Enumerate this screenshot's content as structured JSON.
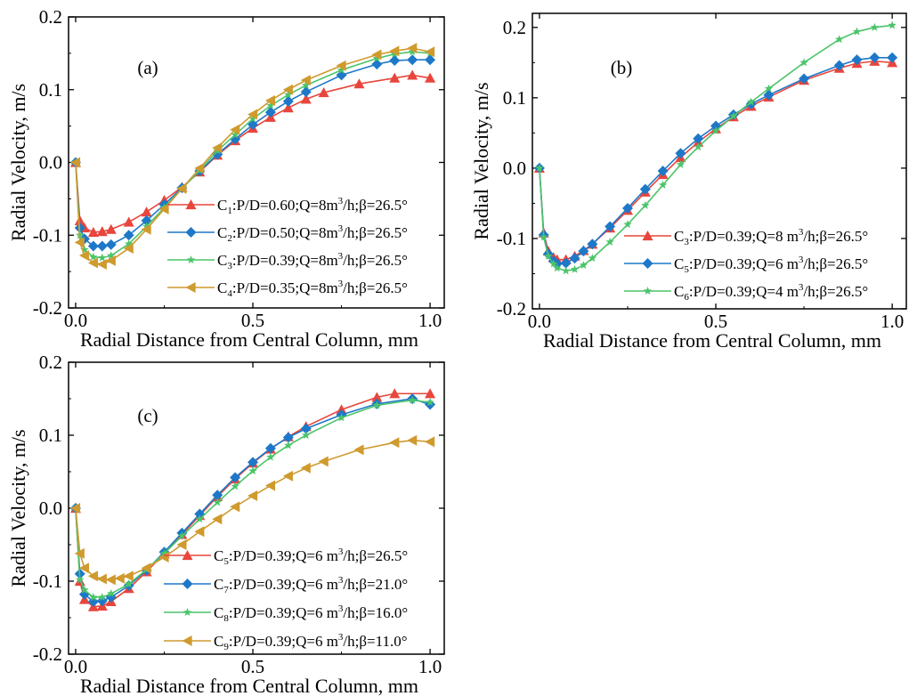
{
  "chart_data": [
    {
      "id": "a",
      "type": "line",
      "panel_label": "(a)",
      "xlabel": "Radial Distance from Central Column, mm",
      "ylabel": "Radial Velocity, m/s",
      "xlim": [
        -0.02,
        1.04
      ],
      "ylim": [
        -0.2,
        0.2
      ],
      "xticks": [
        0.0,
        0.5,
        1.0
      ],
      "xtick_labels": [
        "0.0",
        "0.5",
        "1.0"
      ],
      "yticks": [
        -0.2,
        -0.1,
        0.0,
        0.1,
        0.2
      ],
      "ytick_labels": [
        "-0.2",
        "-0.1",
        "0.0",
        "0.1",
        "0.2"
      ],
      "legend_position": "bottom-right",
      "series": [
        {
          "label": {
            "pre": "C",
            "sub": "1",
            "main": ":P/D=0.60;Q=8m",
            "sup": "3",
            "post": "/h;β=26.5°"
          },
          "color": "#e8453c",
          "marker": "triangle-up",
          "x": [
            0,
            0.012,
            0.025,
            0.05,
            0.075,
            0.1,
            0.15,
            0.2,
            0.25,
            0.3,
            0.35,
            0.4,
            0.45,
            0.5,
            0.55,
            0.6,
            0.65,
            0.7,
            0.8,
            0.9,
            0.95,
            1.0
          ],
          "y": [
            0,
            -0.08,
            -0.09,
            -0.096,
            -0.095,
            -0.092,
            -0.082,
            -0.068,
            -0.052,
            -0.034,
            -0.013,
            0.01,
            0.03,
            0.047,
            0.062,
            0.075,
            0.087,
            0.096,
            0.108,
            0.116,
            0.12,
            0.116
          ]
        },
        {
          "label": {
            "pre": "C",
            "sub": "2",
            "main": ":P/D=0.50;Q=8m",
            "sup": "3",
            "post": "/h;β=26.5°"
          },
          "color": "#1e78c8",
          "marker": "diamond",
          "x": [
            0,
            0.012,
            0.025,
            0.05,
            0.075,
            0.1,
            0.15,
            0.2,
            0.25,
            0.3,
            0.35,
            0.4,
            0.45,
            0.5,
            0.55,
            0.6,
            0.65,
            0.75,
            0.85,
            0.9,
            0.95,
            1.0
          ],
          "y": [
            0,
            -0.09,
            -0.105,
            -0.115,
            -0.115,
            -0.113,
            -0.1,
            -0.08,
            -0.058,
            -0.035,
            -0.012,
            0.011,
            0.032,
            0.052,
            0.069,
            0.084,
            0.097,
            0.12,
            0.135,
            0.14,
            0.141,
            0.141
          ]
        },
        {
          "label": {
            "pre": "C",
            "sub": "3",
            "main": ":P/D=0.39;Q=8m",
            "sup": "3",
            "post": "/h;β=26.5°"
          },
          "color": "#4cc46a",
          "marker": "star",
          "x": [
            0,
            0.012,
            0.025,
            0.05,
            0.075,
            0.1,
            0.15,
            0.2,
            0.25,
            0.3,
            0.35,
            0.4,
            0.45,
            0.5,
            0.55,
            0.6,
            0.65,
            0.75,
            0.85,
            0.9,
            0.95,
            1.0
          ],
          "y": [
            0,
            -0.1,
            -0.12,
            -0.13,
            -0.131,
            -0.128,
            -0.112,
            -0.088,
            -0.062,
            -0.036,
            -0.011,
            0.016,
            0.038,
            0.06,
            0.078,
            0.093,
            0.106,
            0.127,
            0.143,
            0.149,
            0.152,
            0.15
          ]
        },
        {
          "label": {
            "pre": "C",
            "sub": "4",
            "main": ":P/D=0.35;Q=8m",
            "sup": "3",
            "post": "/h;β=26.5°"
          },
          "color": "#cf9a2e",
          "marker": "triangle-left",
          "x": [
            0,
            0.012,
            0.025,
            0.05,
            0.075,
            0.1,
            0.15,
            0.2,
            0.25,
            0.3,
            0.35,
            0.4,
            0.45,
            0.5,
            0.55,
            0.6,
            0.65,
            0.75,
            0.85,
            0.9,
            0.95,
            1.0
          ],
          "y": [
            0,
            -0.11,
            -0.128,
            -0.138,
            -0.14,
            -0.135,
            -0.118,
            -0.092,
            -0.064,
            -0.036,
            -0.008,
            0.02,
            0.045,
            0.066,
            0.085,
            0.1,
            0.113,
            0.133,
            0.148,
            0.153,
            0.157,
            0.152
          ]
        }
      ]
    },
    {
      "id": "b",
      "type": "line",
      "panel_label": "(b)",
      "xlabel": "Radial Distance from Central Column, mm",
      "ylabel": "Radial Velocity, m/s",
      "xlim": [
        -0.02,
        1.04
      ],
      "ylim": [
        -0.2,
        0.22
      ],
      "xticks": [
        0.0,
        0.5,
        1.0
      ],
      "xtick_labels": [
        "0.0",
        "0.5",
        "1.0"
      ],
      "yticks": [
        -0.2,
        -0.1,
        0.0,
        0.1,
        0.2
      ],
      "ytick_labels": [
        "-0.2",
        "-0.1",
        "0.0",
        "0.1",
        "0.2"
      ],
      "legend_position": "bottom-right",
      "series": [
        {
          "label": {
            "pre": "C",
            "sub": "3",
            "main": ":P/D=0.39;Q=8 m",
            "sup": "3",
            "post": "/h;β=26.5°"
          },
          "color": "#e8453c",
          "marker": "triangle-up",
          "x": [
            0,
            0.012,
            0.025,
            0.04,
            0.05,
            0.075,
            0.1,
            0.125,
            0.15,
            0.2,
            0.25,
            0.3,
            0.35,
            0.4,
            0.45,
            0.5,
            0.55,
            0.6,
            0.65,
            0.75,
            0.85,
            0.9,
            0.95,
            1.0
          ],
          "y": [
            0,
            -0.092,
            -0.118,
            -0.127,
            -0.13,
            -0.13,
            -0.125,
            -0.117,
            -0.108,
            -0.085,
            -0.06,
            -0.034,
            -0.009,
            0.015,
            0.037,
            0.056,
            0.073,
            0.088,
            0.101,
            0.125,
            0.142,
            0.149,
            0.152,
            0.15
          ]
        },
        {
          "label": {
            "pre": "C",
            "sub": "5",
            "main": ":P/D=0.39;Q=6 m",
            "sup": "3",
            "post": "/h;β=26.5°"
          },
          "color": "#1e78c8",
          "marker": "diamond",
          "x": [
            0,
            0.012,
            0.025,
            0.04,
            0.05,
            0.075,
            0.1,
            0.125,
            0.15,
            0.2,
            0.25,
            0.3,
            0.35,
            0.4,
            0.45,
            0.5,
            0.55,
            0.6,
            0.65,
            0.75,
            0.85,
            0.9,
            0.95,
            1.0
          ],
          "y": [
            0,
            -0.095,
            -0.122,
            -0.132,
            -0.136,
            -0.135,
            -0.128,
            -0.118,
            -0.108,
            -0.083,
            -0.057,
            -0.03,
            -0.004,
            0.021,
            0.042,
            0.06,
            0.076,
            0.091,
            0.104,
            0.127,
            0.146,
            0.154,
            0.157,
            0.157
          ]
        },
        {
          "label": {
            "pre": "C",
            "sub": "6",
            "main": ":P/D=0.39;Q=4 m",
            "sup": "3",
            "post": "/h;β=26.5°"
          },
          "color": "#4cc46a",
          "marker": "star",
          "x": [
            0,
            0.012,
            0.025,
            0.04,
            0.05,
            0.075,
            0.1,
            0.125,
            0.15,
            0.2,
            0.25,
            0.3,
            0.35,
            0.4,
            0.45,
            0.5,
            0.55,
            0.6,
            0.65,
            0.75,
            0.85,
            0.9,
            0.95,
            1.0
          ],
          "y": [
            0,
            -0.098,
            -0.125,
            -0.136,
            -0.142,
            -0.146,
            -0.144,
            -0.138,
            -0.128,
            -0.105,
            -0.08,
            -0.053,
            -0.024,
            0.005,
            0.03,
            0.053,
            0.074,
            0.094,
            0.113,
            0.15,
            0.183,
            0.194,
            0.2,
            0.203
          ]
        }
      ]
    },
    {
      "id": "c",
      "type": "line",
      "panel_label": "(c)",
      "xlabel": "Radial Distance from Central Column, mm",
      "ylabel": "Radial Velocity, m/s",
      "xlim": [
        -0.02,
        1.04
      ],
      "ylim": [
        -0.2,
        0.2
      ],
      "xticks": [
        0.0,
        0.5,
        1.0
      ],
      "xtick_labels": [
        "0.0",
        "0.5",
        "1.0"
      ],
      "yticks": [
        -0.2,
        -0.1,
        0.0,
        0.1,
        0.2
      ],
      "ytick_labels": [
        "-0.2",
        "-0.1",
        "0.0",
        "0.1",
        "0.2"
      ],
      "legend_position": "bottom-right",
      "series": [
        {
          "label": {
            "pre": "C",
            "sub": "5",
            "main": ":P/D=0.39;Q=6 m",
            "sup": "3",
            "post": "/h;β=26.5°"
          },
          "color": "#e8453c",
          "marker": "triangle-up",
          "x": [
            0,
            0.012,
            0.025,
            0.05,
            0.075,
            0.1,
            0.15,
            0.2,
            0.25,
            0.3,
            0.35,
            0.4,
            0.45,
            0.5,
            0.55,
            0.6,
            0.65,
            0.75,
            0.85,
            0.9,
            1.0
          ],
          "y": [
            0,
            -0.1,
            -0.125,
            -0.135,
            -0.134,
            -0.128,
            -0.11,
            -0.087,
            -0.062,
            -0.036,
            -0.01,
            0.016,
            0.04,
            0.062,
            0.081,
            0.098,
            0.112,
            0.135,
            0.152,
            0.157,
            0.157
          ]
        },
        {
          "label": {
            "pre": "C",
            "sub": "7",
            "main": ":P/D=0.39;Q=6 m",
            "sup": "3",
            "post": "/h;β=21.0°"
          },
          "color": "#1e78c8",
          "marker": "diamond",
          "x": [
            0,
            0.012,
            0.025,
            0.05,
            0.075,
            0.1,
            0.15,
            0.2,
            0.25,
            0.3,
            0.35,
            0.4,
            0.45,
            0.5,
            0.55,
            0.6,
            0.65,
            0.75,
            0.85,
            0.95,
            1.0
          ],
          "y": [
            0,
            -0.09,
            -0.118,
            -0.128,
            -0.127,
            -0.122,
            -0.106,
            -0.085,
            -0.06,
            -0.034,
            -0.008,
            0.018,
            0.042,
            0.063,
            0.082,
            0.097,
            0.109,
            0.128,
            0.143,
            0.15,
            0.142
          ]
        },
        {
          "label": {
            "pre": "C",
            "sub": "8",
            "main": ":P/D=0.39;Q=6 m",
            "sup": "3",
            "post": "/h;β=16.0°"
          },
          "color": "#4cc46a",
          "marker": "star",
          "x": [
            0,
            0.012,
            0.025,
            0.05,
            0.075,
            0.1,
            0.15,
            0.2,
            0.25,
            0.3,
            0.35,
            0.4,
            0.45,
            0.5,
            0.55,
            0.6,
            0.65,
            0.75,
            0.85,
            0.95,
            1.0
          ],
          "y": [
            0,
            -0.098,
            -0.112,
            -0.122,
            -0.122,
            -0.117,
            -0.104,
            -0.084,
            -0.062,
            -0.038,
            -0.015,
            0.008,
            0.03,
            0.051,
            0.07,
            0.086,
            0.1,
            0.124,
            0.141,
            0.148,
            0.145
          ]
        },
        {
          "label": {
            "pre": "C",
            "sub": "9",
            "main": ":P/D=0.39;Q=6 m",
            "sup": "3",
            "post": "/h;β=11.0°"
          },
          "color": "#cf9a2e",
          "marker": "triangle-left",
          "x": [
            0,
            0.012,
            0.025,
            0.05,
            0.075,
            0.1,
            0.125,
            0.15,
            0.2,
            0.25,
            0.3,
            0.35,
            0.4,
            0.45,
            0.5,
            0.55,
            0.6,
            0.65,
            0.7,
            0.8,
            0.9,
            0.95,
            1.0
          ],
          "y": [
            0,
            -0.062,
            -0.082,
            -0.093,
            -0.097,
            -0.098,
            -0.096,
            -0.093,
            -0.082,
            -0.067,
            -0.05,
            -0.032,
            -0.015,
            0.002,
            0.017,
            0.031,
            0.044,
            0.055,
            0.064,
            0.08,
            0.09,
            0.093,
            0.091
          ]
        }
      ]
    }
  ]
}
